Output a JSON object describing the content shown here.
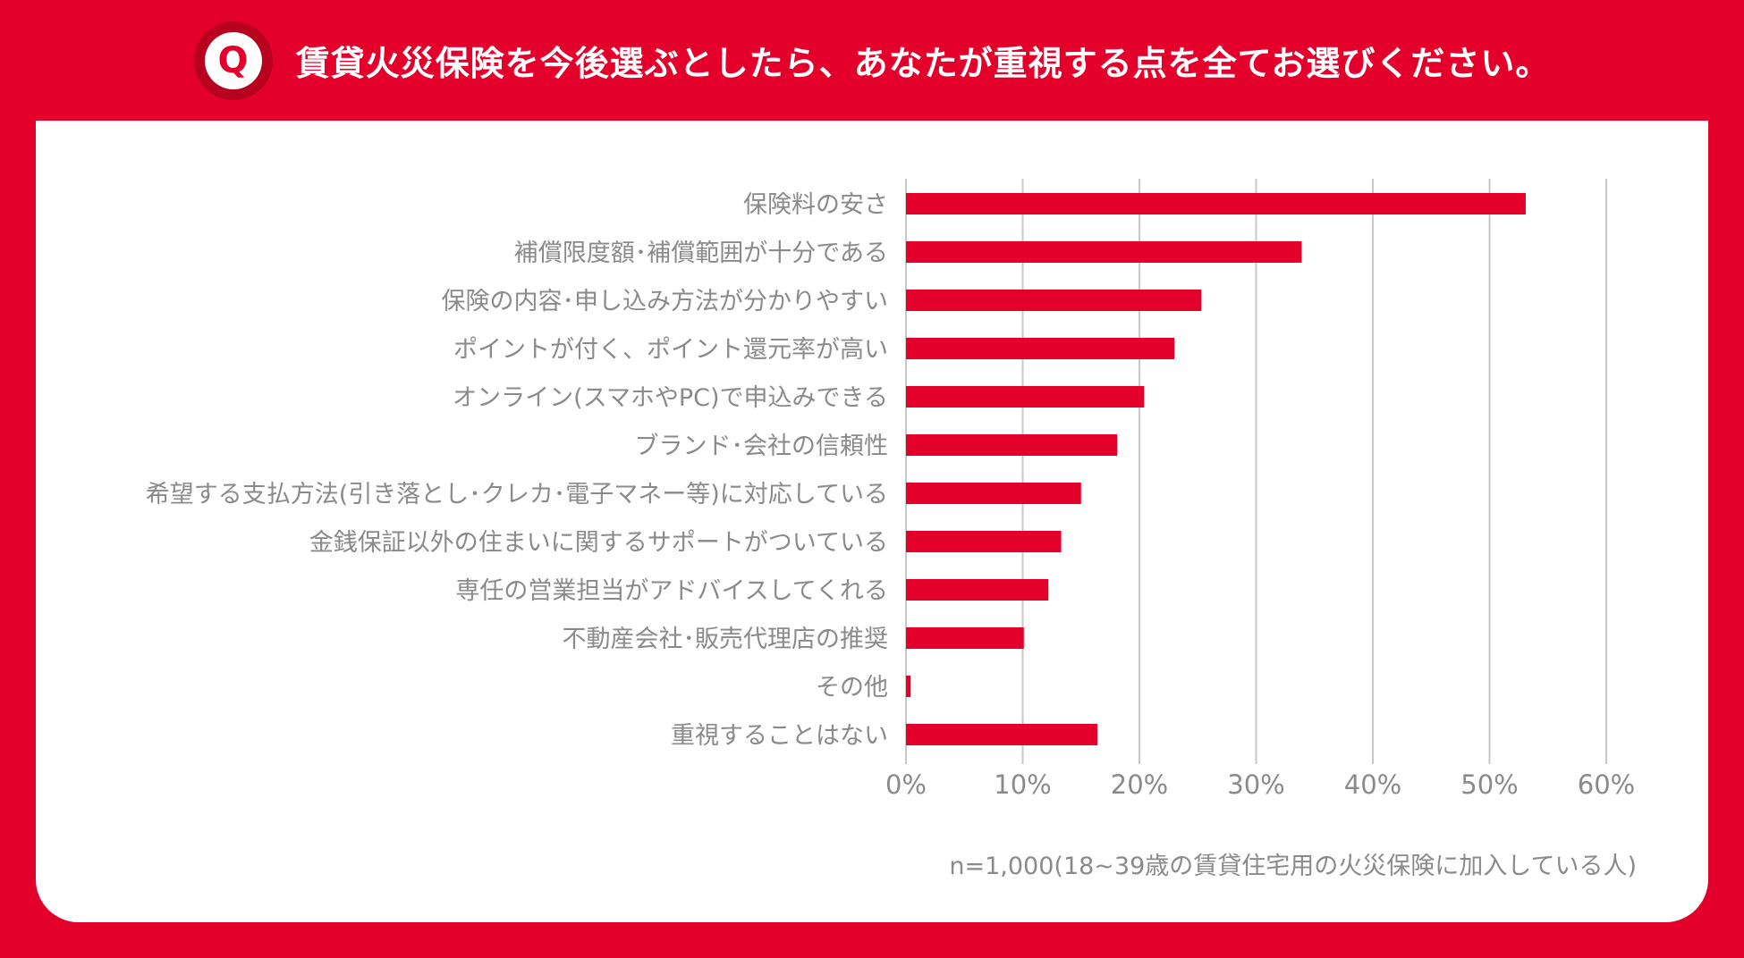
{
  "header": {
    "badge_letter": "Q",
    "title": "賃貸火災保険を今後選ぶとしたら、あなたが重視する点を全てお選びください。"
  },
  "note": "n=1,000(18~39歳の賃貸住宅用の火災保険に加入している人)",
  "colors": {
    "accent": "#e3002b",
    "bar": "#e3002b",
    "grid": "#c8c8c8",
    "text": "#8a8a8a"
  },
  "chart_data": {
    "type": "bar",
    "orientation": "horizontal",
    "categories": [
      "保険料の安さ",
      "補償限度額･補償範囲が十分である",
      "保険の内容･申し込み方法が分かりやすい",
      "ポイントが付く、ポイント還元率が高い",
      "オンライン(スマホやPC)で申込みできる",
      "ブランド･会社の信頼性",
      "希望する支払方法(引き落とし･クレカ･電子マネー等)に対応している",
      "金銭保証以外の住まいに関するサポートがついている",
      "専任の営業担当がアドバイスしてくれる",
      "不動産会社･販売代理店の推奨",
      "その他",
      "重視することはない"
    ],
    "values": [
      53.1,
      33.9,
      25.3,
      23.0,
      20.4,
      18.1,
      15.0,
      13.3,
      12.2,
      10.1,
      0.4,
      16.4
    ],
    "xlim": [
      0,
      60
    ],
    "xticks": [
      "0%",
      "10%",
      "20%",
      "30%",
      "40%",
      "50%",
      "60%"
    ],
    "grid": true
  }
}
